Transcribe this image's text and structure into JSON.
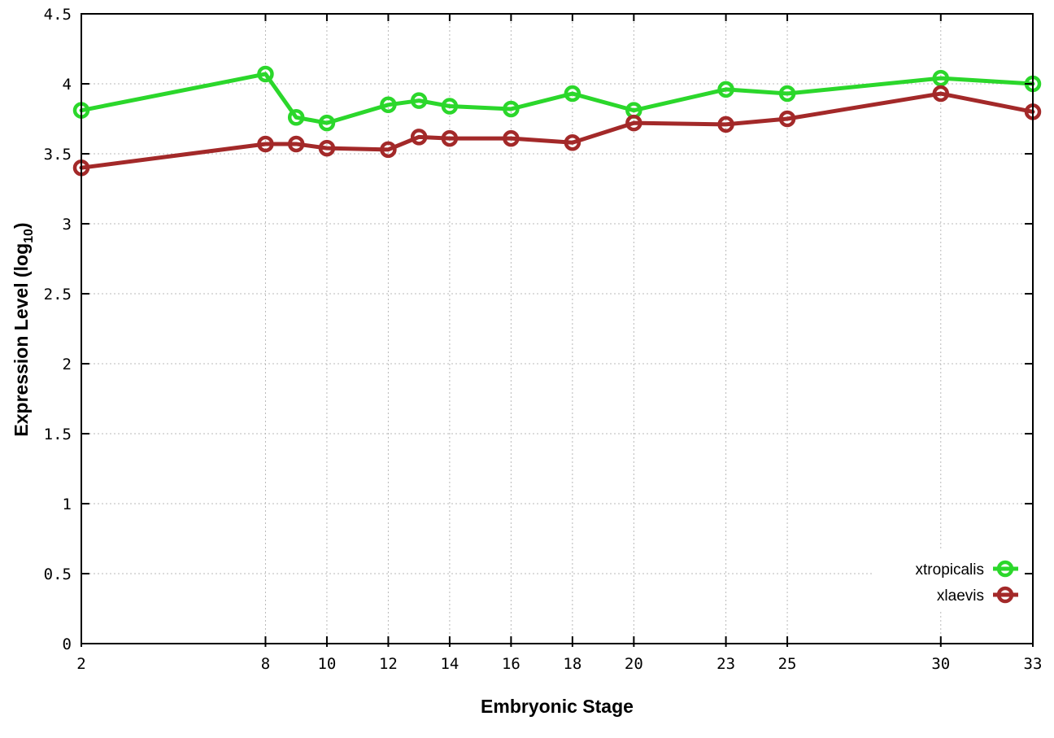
{
  "chart_data": {
    "type": "line",
    "title": "",
    "xlabel": "Embryonic Stage",
    "ylabel": "Expression Level (log10)",
    "ylabel_parts": {
      "base": "Expression Level (log",
      "sub": "10",
      "close": ")"
    },
    "x": [
      2,
      8,
      9,
      10,
      12,
      13,
      14,
      16,
      18,
      20,
      23,
      25,
      30,
      33
    ],
    "series": [
      {
        "name": "xtropicalis",
        "color": "#2bd72b",
        "values": [
          3.81,
          4.07,
          3.76,
          3.72,
          3.85,
          3.88,
          3.84,
          3.82,
          3.93,
          3.81,
          3.96,
          3.93,
          4.04,
          4.0
        ]
      },
      {
        "name": "xlaevis",
        "color": "#a32929",
        "values": [
          3.4,
          3.57,
          3.57,
          3.54,
          3.53,
          3.62,
          3.61,
          3.61,
          3.58,
          3.72,
          3.71,
          3.75,
          3.93,
          3.8
        ]
      }
    ],
    "xlim": [
      2,
      33
    ],
    "ylim": [
      0,
      4.5
    ],
    "xticks": [
      2,
      8,
      10,
      12,
      14,
      16,
      18,
      20,
      23,
      25,
      30,
      33
    ],
    "xtick_labels": [
      "2",
      "8",
      "10",
      "12",
      "14",
      "16",
      "18",
      "20",
      "23",
      "25",
      "30",
      "33"
    ],
    "yticks": [
      0,
      0.5,
      1,
      1.5,
      2,
      2.5,
      3,
      3.5,
      4,
      4.5
    ],
    "ytick_labels": [
      "0",
      "0.5",
      "1",
      "1.5",
      "2",
      "2.5",
      "3",
      "3.5",
      "4",
      "4.5"
    ],
    "grid": true,
    "legend_position": "inside-bottom-right",
    "marker": "open-circle",
    "grid_color": "#b8b8b8",
    "background_color": "#ffffff"
  }
}
